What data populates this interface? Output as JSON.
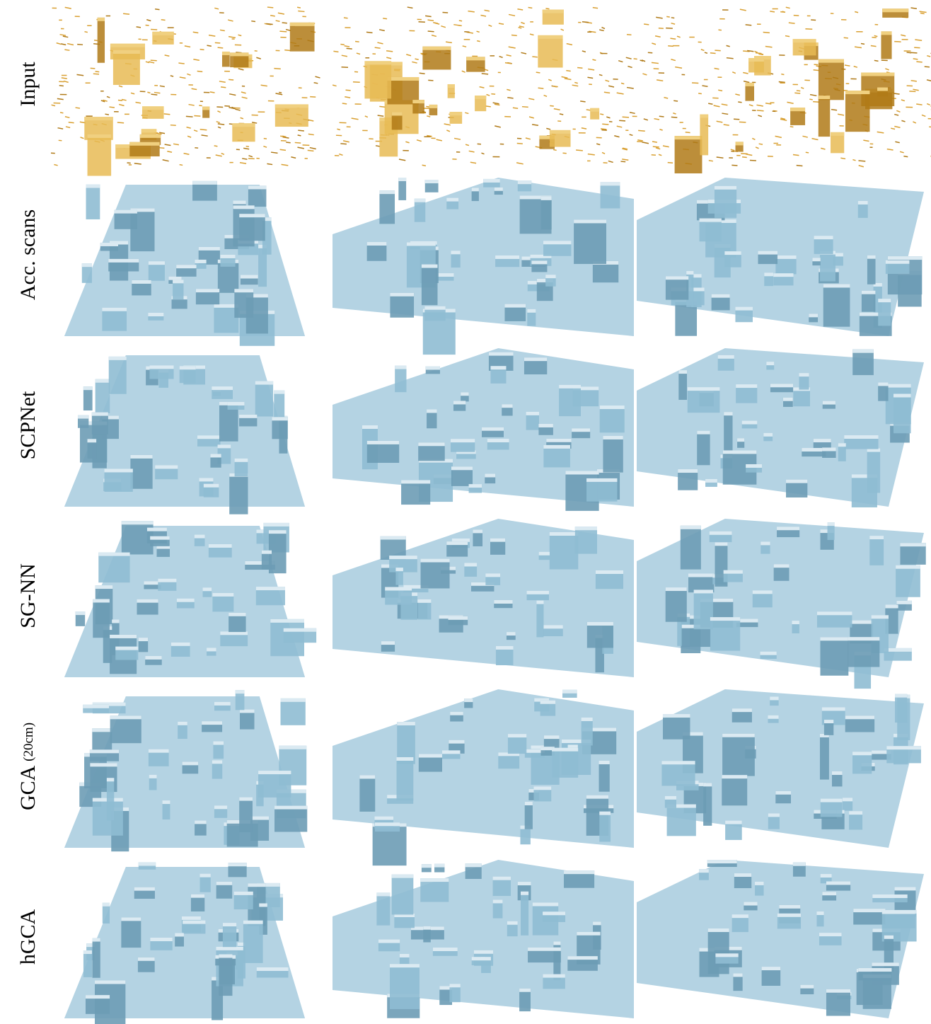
{
  "rows": [
    {
      "label": "Input"
    },
    {
      "label": "Acc. scans"
    },
    {
      "label": "SCPNet"
    },
    {
      "label": "SG-NN"
    },
    {
      "label": "GCA",
      "note": "(20cm)"
    },
    {
      "label": "hGCA"
    }
  ]
}
